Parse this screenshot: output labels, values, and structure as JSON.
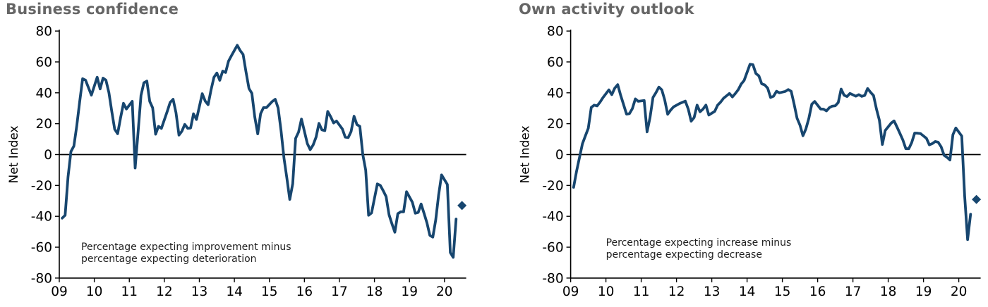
{
  "page": {
    "background": "#ffffff"
  },
  "colors": {
    "line": "#17466F",
    "title_gray": "#666666",
    "axis": "#000000",
    "annotation_text": "#1f1f1f"
  },
  "chart_data": [
    {
      "type": "line",
      "title": "Business confidence",
      "ylabel": "Net Index",
      "xlabel": "",
      "annotation_lines": [
        "Percentage expecting improvement minus",
        "percentage expecting deterioration"
      ],
      "x_tick_labels": [
        "09",
        "10",
        "11",
        "12",
        "13",
        "14",
        "15",
        "16",
        "17",
        "18",
        "19",
        "20"
      ],
      "y_ticks": [
        80,
        60,
        40,
        20,
        0,
        -20,
        -40,
        -60,
        -80
      ],
      "ylim": [
        -80,
        80
      ],
      "x_range_years": [
        2009,
        2020.6
      ],
      "grid": false,
      "zero_line": true,
      "legend": "none",
      "line_color": "#17466F",
      "series_name": "Business confidence (net % expecting improvement)",
      "points": [
        [
          2009.083,
          -41.2
        ],
        [
          2009.167,
          -39.3
        ],
        [
          2009.25,
          -14.5
        ],
        [
          2009.333,
          1.9
        ],
        [
          2009.417,
          5.5
        ],
        [
          2009.5,
          18.7
        ],
        [
          2009.583,
          34.2
        ],
        [
          2009.667,
          49.1
        ],
        [
          2009.75,
          48.2
        ],
        [
          2009.833,
          43.4
        ],
        [
          2009.917,
          38.5
        ],
        [
          2010.083,
          50.1
        ],
        [
          2010.167,
          42.5
        ],
        [
          2010.25,
          49.5
        ],
        [
          2010.333,
          48.2
        ],
        [
          2010.417,
          40.2
        ],
        [
          2010.5,
          27.9
        ],
        [
          2010.583,
          16.4
        ],
        [
          2010.667,
          13.5
        ],
        [
          2010.75,
          23.7
        ],
        [
          2010.833,
          33.2
        ],
        [
          2010.917,
          29.5
        ],
        [
          2011.083,
          34.5
        ],
        [
          2011.167,
          -8.7
        ],
        [
          2011.25,
          14.2
        ],
        [
          2011.333,
          38.3
        ],
        [
          2011.417,
          46.5
        ],
        [
          2011.5,
          47.6
        ],
        [
          2011.583,
          34.4
        ],
        [
          2011.667,
          30.3
        ],
        [
          2011.75,
          13.2
        ],
        [
          2011.833,
          18.3
        ],
        [
          2011.917,
          16.9
        ],
        [
          2012.083,
          28.0
        ],
        [
          2012.167,
          33.8
        ],
        [
          2012.25,
          35.8
        ],
        [
          2012.333,
          27.1
        ],
        [
          2012.417,
          12.6
        ],
        [
          2012.5,
          15.1
        ],
        [
          2012.583,
          19.5
        ],
        [
          2012.667,
          17.0
        ],
        [
          2012.75,
          17.2
        ],
        [
          2012.833,
          26.4
        ],
        [
          2012.917,
          22.7
        ],
        [
          2013.083,
          39.4
        ],
        [
          2013.167,
          34.6
        ],
        [
          2013.25,
          32.3
        ],
        [
          2013.333,
          41.8
        ],
        [
          2013.417,
          50.1
        ],
        [
          2013.5,
          52.8
        ],
        [
          2013.583,
          48.1
        ],
        [
          2013.667,
          54.1
        ],
        [
          2013.75,
          53.2
        ],
        [
          2013.833,
          60.5
        ],
        [
          2013.917,
          64.1
        ],
        [
          2014.083,
          70.8
        ],
        [
          2014.167,
          67.3
        ],
        [
          2014.25,
          64.8
        ],
        [
          2014.333,
          53.5
        ],
        [
          2014.417,
          42.8
        ],
        [
          2014.5,
          39.7
        ],
        [
          2014.583,
          24.4
        ],
        [
          2014.667,
          13.4
        ],
        [
          2014.75,
          26.5
        ],
        [
          2014.833,
          30.4
        ],
        [
          2014.917,
          30.4
        ],
        [
          2015.083,
          34.4
        ],
        [
          2015.167,
          35.8
        ],
        [
          2015.25,
          30.2
        ],
        [
          2015.333,
          15.7
        ],
        [
          2015.417,
          -2.3
        ],
        [
          2015.5,
          -15.3
        ],
        [
          2015.583,
          -29.1
        ],
        [
          2015.667,
          -18.9
        ],
        [
          2015.75,
          10.5
        ],
        [
          2015.833,
          14.6
        ],
        [
          2015.917,
          23.0
        ],
        [
          2016.083,
          7.1
        ],
        [
          2016.167,
          3.2
        ],
        [
          2016.25,
          6.2
        ],
        [
          2016.333,
          11.3
        ],
        [
          2016.417,
          20.2
        ],
        [
          2016.5,
          16.0
        ],
        [
          2016.583,
          15.5
        ],
        [
          2016.667,
          27.9
        ],
        [
          2016.75,
          24.5
        ],
        [
          2016.833,
          20.5
        ],
        [
          2016.917,
          21.7
        ],
        [
          2017.083,
          16.6
        ],
        [
          2017.167,
          11.3
        ],
        [
          2017.25,
          11.0
        ],
        [
          2017.333,
          14.9
        ],
        [
          2017.417,
          24.8
        ],
        [
          2017.5,
          19.4
        ],
        [
          2017.583,
          18.3
        ],
        [
          2017.667,
          0.0
        ],
        [
          2017.75,
          -10.1
        ],
        [
          2017.833,
          -39.3
        ],
        [
          2017.917,
          -37.8
        ],
        [
          2018.083,
          -19.0
        ],
        [
          2018.167,
          -20.0
        ],
        [
          2018.25,
          -23.4
        ],
        [
          2018.333,
          -27.2
        ],
        [
          2018.417,
          -39.0
        ],
        [
          2018.5,
          -44.9
        ],
        [
          2018.583,
          -50.3
        ],
        [
          2018.667,
          -38.3
        ],
        [
          2018.75,
          -37.1
        ],
        [
          2018.833,
          -37.1
        ],
        [
          2018.917,
          -24.1
        ],
        [
          2019.083,
          -30.9
        ],
        [
          2019.167,
          -38.0
        ],
        [
          2019.25,
          -37.5
        ],
        [
          2019.333,
          -32.0
        ],
        [
          2019.417,
          -38.1
        ],
        [
          2019.5,
          -44.3
        ],
        [
          2019.583,
          -52.3
        ],
        [
          2019.667,
          -53.5
        ],
        [
          2019.75,
          -42.4
        ],
        [
          2019.833,
          -26.3
        ],
        [
          2019.917,
          -13.2
        ],
        [
          2020.083,
          -19.4
        ],
        [
          2020.167,
          -63.5
        ],
        [
          2020.25,
          -66.6
        ],
        [
          2020.333,
          -41.8
        ]
      ],
      "latest_preliminary": {
        "x": 2020.5,
        "value": -33.0,
        "marker": "diamond"
      }
    },
    {
      "type": "line",
      "title": "Own activity outlook",
      "ylabel": "Net Index",
      "xlabel": "",
      "annotation_lines": [
        "Percentage expecting increase minus",
        "percentage expecting decrease"
      ],
      "x_tick_labels": [
        "09",
        "10",
        "11",
        "12",
        "13",
        "14",
        "15",
        "16",
        "17",
        "18",
        "19",
        "20"
      ],
      "y_ticks": [
        80,
        60,
        40,
        20,
        0,
        -20,
        -40,
        -60,
        -80
      ],
      "ylim": [
        -80,
        80
      ],
      "x_range_years": [
        2009,
        2020.6
      ],
      "grid": false,
      "zero_line": true,
      "legend": "none",
      "line_color": "#17466F",
      "series_name": "Own activity outlook (net % expecting increase)",
      "points": [
        [
          2009.083,
          -21.2
        ],
        [
          2009.167,
          -11.0
        ],
        [
          2009.25,
          -2.0
        ],
        [
          2009.333,
          7.0
        ],
        [
          2009.417,
          12.0
        ],
        [
          2009.5,
          17.0
        ],
        [
          2009.583,
          30.5
        ],
        [
          2009.667,
          32.0
        ],
        [
          2009.75,
          31.5
        ],
        [
          2009.833,
          34.0
        ],
        [
          2009.917,
          36.9
        ],
        [
          2010.083,
          41.9
        ],
        [
          2010.167,
          38.8
        ],
        [
          2010.25,
          43.0
        ],
        [
          2010.333,
          45.3
        ],
        [
          2010.417,
          38.5
        ],
        [
          2010.5,
          32.4
        ],
        [
          2010.583,
          26.2
        ],
        [
          2010.667,
          26.5
        ],
        [
          2010.75,
          29.8
        ],
        [
          2010.833,
          36.1
        ],
        [
          2010.917,
          34.5
        ],
        [
          2011.083,
          35.0
        ],
        [
          2011.167,
          14.7
        ],
        [
          2011.25,
          24.0
        ],
        [
          2011.333,
          37.0
        ],
        [
          2011.417,
          40.0
        ],
        [
          2011.5,
          43.7
        ],
        [
          2011.583,
          41.9
        ],
        [
          2011.667,
          35.4
        ],
        [
          2011.75,
          26.1
        ],
        [
          2011.833,
          28.8
        ],
        [
          2011.917,
          30.9
        ],
        [
          2012.083,
          33.0
        ],
        [
          2012.167,
          33.8
        ],
        [
          2012.25,
          34.6
        ],
        [
          2012.333,
          29.4
        ],
        [
          2012.417,
          21.6
        ],
        [
          2012.5,
          24.0
        ],
        [
          2012.583,
          32.0
        ],
        [
          2012.667,
          27.7
        ],
        [
          2012.75,
          29.4
        ],
        [
          2012.833,
          32.0
        ],
        [
          2012.917,
          25.6
        ],
        [
          2013.083,
          28.0
        ],
        [
          2013.167,
          32.0
        ],
        [
          2013.25,
          34.0
        ],
        [
          2013.333,
          36.5
        ],
        [
          2013.417,
          38.0
        ],
        [
          2013.5,
          39.6
        ],
        [
          2013.583,
          37.3
        ],
        [
          2013.667,
          39.5
        ],
        [
          2013.75,
          42.0
        ],
        [
          2013.833,
          45.7
        ],
        [
          2013.917,
          48.0
        ],
        [
          2014.083,
          58.5
        ],
        [
          2014.167,
          58.2
        ],
        [
          2014.25,
          52.5
        ],
        [
          2014.333,
          51.0
        ],
        [
          2014.417,
          45.8
        ],
        [
          2014.5,
          45.1
        ],
        [
          2014.583,
          43.0
        ],
        [
          2014.667,
          37.0
        ],
        [
          2014.75,
          37.8
        ],
        [
          2014.833,
          41.0
        ],
        [
          2014.917,
          40.0
        ],
        [
          2015.083,
          40.9
        ],
        [
          2015.167,
          42.1
        ],
        [
          2015.25,
          41.0
        ],
        [
          2015.333,
          32.6
        ],
        [
          2015.417,
          23.6
        ],
        [
          2015.5,
          19.0
        ],
        [
          2015.583,
          12.2
        ],
        [
          2015.667,
          16.5
        ],
        [
          2015.75,
          23.4
        ],
        [
          2015.833,
          32.6
        ],
        [
          2015.917,
          34.4
        ],
        [
          2016.083,
          29.5
        ],
        [
          2016.167,
          29.4
        ],
        [
          2016.25,
          28.3
        ],
        [
          2016.333,
          30.4
        ],
        [
          2016.417,
          31.4
        ],
        [
          2016.5,
          31.6
        ],
        [
          2016.583,
          33.7
        ],
        [
          2016.667,
          42.4
        ],
        [
          2016.75,
          38.4
        ],
        [
          2016.833,
          37.6
        ],
        [
          2016.917,
          39.6
        ],
        [
          2017.083,
          37.8
        ],
        [
          2017.167,
          38.8
        ],
        [
          2017.25,
          37.7
        ],
        [
          2017.333,
          38.3
        ],
        [
          2017.417,
          42.8
        ],
        [
          2017.5,
          40.3
        ],
        [
          2017.583,
          38.2
        ],
        [
          2017.667,
          29.6
        ],
        [
          2017.75,
          22.2
        ],
        [
          2017.833,
          6.5
        ],
        [
          2017.917,
          15.6
        ],
        [
          2018.083,
          20.4
        ],
        [
          2018.167,
          21.8
        ],
        [
          2018.25,
          17.8
        ],
        [
          2018.333,
          13.6
        ],
        [
          2018.417,
          9.4
        ],
        [
          2018.5,
          3.8
        ],
        [
          2018.583,
          3.8
        ],
        [
          2018.667,
          7.8
        ],
        [
          2018.75,
          13.9
        ],
        [
          2018.833,
          13.8
        ],
        [
          2018.917,
          13.6
        ],
        [
          2019.083,
          10.5
        ],
        [
          2019.167,
          6.3
        ],
        [
          2019.25,
          7.1
        ],
        [
          2019.333,
          8.5
        ],
        [
          2019.417,
          8.0
        ],
        [
          2019.5,
          5.0
        ],
        [
          2019.583,
          -0.5
        ],
        [
          2019.667,
          -1.8
        ],
        [
          2019.75,
          -3.5
        ],
        [
          2019.833,
          12.9
        ],
        [
          2019.917,
          17.2
        ],
        [
          2020.083,
          12.0
        ],
        [
          2020.167,
          -26.7
        ],
        [
          2020.25,
          -55.1
        ],
        [
          2020.333,
          -38.7
        ]
      ],
      "latest_preliminary": {
        "x": 2020.5,
        "value": -29.1,
        "marker": "diamond"
      }
    }
  ]
}
